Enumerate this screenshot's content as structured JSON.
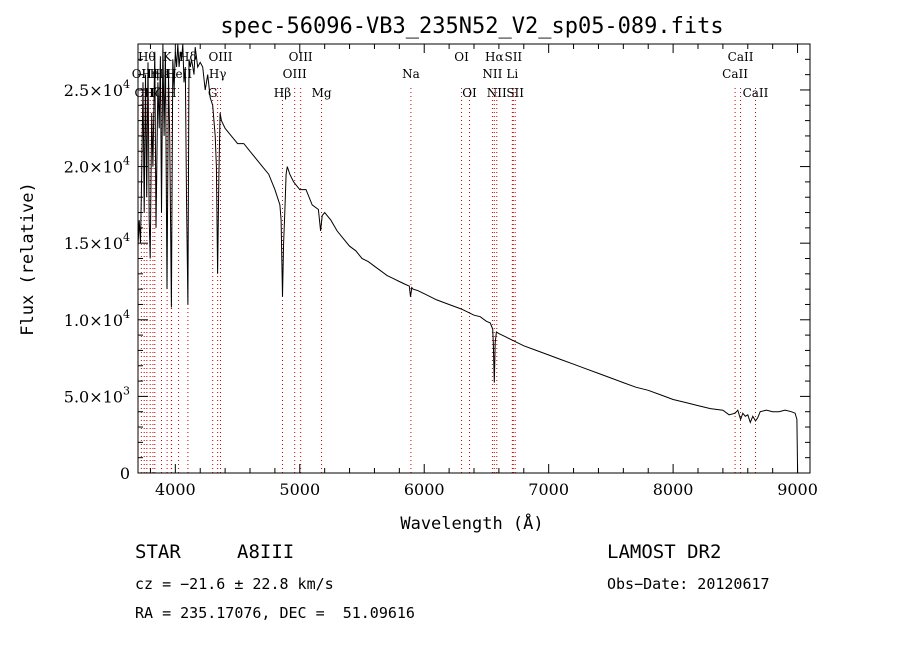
{
  "chart_data": {
    "type": "line",
    "title": "spec-56096-VB3_235N52_V2_sp05-089.fits",
    "xlabel": "Wavelength (Å)",
    "ylabel": "Flux (relative)",
    "xlim": [
      3700,
      9100
    ],
    "ylim": [
      0,
      28000
    ],
    "grid": false,
    "legend": "none",
    "x_ticks": [
      {
        "value": 4000,
        "label": "4000"
      },
      {
        "value": 5000,
        "label": "5000"
      },
      {
        "value": 6000,
        "label": "6000"
      },
      {
        "value": 7000,
        "label": "7000"
      },
      {
        "value": 8000,
        "label": "8000"
      },
      {
        "value": 9000,
        "label": "9000"
      }
    ],
    "y_ticks": [
      {
        "value": 0,
        "mant": "0",
        "exp": ""
      },
      {
        "value": 5000,
        "mant": "5.0×10",
        "exp": "3"
      },
      {
        "value": 10000,
        "mant": "1.0×10",
        "exp": "4"
      },
      {
        "value": 15000,
        "mant": "1.5×10",
        "exp": "4"
      },
      {
        "value": 20000,
        "mant": "2.0×10",
        "exp": "4"
      },
      {
        "value": 25000,
        "mant": "2.5×10",
        "exp": "4"
      }
    ],
    "line_color": "#000000",
    "marker_color": "#cc0000",
    "series": [
      {
        "x": [
          3700,
          3710,
          3720,
          3730,
          3740,
          3750,
          3760,
          3770,
          3780,
          3790,
          3798,
          3810,
          3820,
          3835,
          3845,
          3860,
          3870,
          3880,
          3889,
          3900,
          3910,
          3920,
          3933,
          3945,
          3955,
          3968,
          3980,
          3990,
          4000,
          4010,
          4020,
          4030,
          4040,
          4050,
          4060,
          4070,
          4080,
          4090,
          4101,
          4110,
          4120,
          4130,
          4140,
          4150,
          4160,
          4180,
          4200,
          4220,
          4240,
          4260,
          4280,
          4300,
          4320,
          4330,
          4340,
          4350,
          4360,
          4370,
          4400,
          4450,
          4500,
          4550,
          4600,
          4650,
          4700,
          4750,
          4800,
          4820,
          4840,
          4850,
          4861,
          4870,
          4880,
          4890,
          4900,
          4920,
          4950,
          5000,
          5050,
          5100,
          5150,
          5167,
          5180,
          5200,
          5250,
          5300,
          5350,
          5400,
          5450,
          5500,
          5550,
          5600,
          5650,
          5700,
          5750,
          5800,
          5850,
          5880,
          5890,
          5895,
          5900,
          5910,
          5950,
          6000,
          6100,
          6200,
          6300,
          6400,
          6450,
          6500,
          6530,
          6550,
          6555,
          6563,
          6570,
          6580,
          6600,
          6650,
          6700,
          6800,
          6900,
          7000,
          7100,
          7200,
          7300,
          7400,
          7500,
          7600,
          7700,
          7800,
          7900,
          8000,
          8100,
          8200,
          8300,
          8400,
          8450,
          8498,
          8520,
          8542,
          8560,
          8580,
          8600,
          8620,
          8640,
          8662,
          8680,
          8700,
          8750,
          8800,
          8850,
          8900,
          8950,
          8980,
          8995,
          9000
        ],
        "y": [
          14800,
          16500,
          15000,
          19500,
          25500,
          17000,
          26000,
          18000,
          26800,
          16500,
          14000,
          23500,
          20000,
          27500,
          16000,
          25500,
          22500,
          27200,
          17000,
          28000,
          22000,
          27500,
          12000,
          26000,
          22000,
          10800,
          27000,
          25000,
          27500,
          26500,
          28000,
          26500,
          27500,
          27000,
          28000,
          25500,
          26500,
          18000,
          11000,
          27000,
          26500,
          27000,
          26500,
          26000,
          27800,
          26500,
          26800,
          26500,
          25000,
          26000,
          24500,
          24000,
          22000,
          20000,
          13000,
          19500,
          23500,
          23000,
          22500,
          22000,
          21500,
          21500,
          21000,
          20500,
          20000,
          19500,
          18500,
          18000,
          17500,
          16500,
          11500,
          15000,
          17000,
          19500,
          20000,
          19500,
          19000,
          18500,
          18500,
          17500,
          17200,
          15800,
          16800,
          17000,
          16500,
          15800,
          15300,
          14800,
          14500,
          14000,
          13800,
          13500,
          13200,
          12900,
          12700,
          12500,
          12300,
          12200,
          11500,
          11800,
          12100,
          12000,
          11900,
          11700,
          11300,
          11000,
          10700,
          10300,
          10200,
          9900,
          9800,
          9400,
          8500,
          5900,
          8500,
          9200,
          9100,
          8900,
          8700,
          8300,
          8000,
          7700,
          7400,
          7100,
          6800,
          6500,
          6200,
          5900,
          5600,
          5400,
          5100,
          4800,
          4600,
          4400,
          4200,
          4100,
          3800,
          3900,
          4100,
          3500,
          3900,
          3700,
          3800,
          3300,
          3700,
          3400,
          3600,
          4000,
          4100,
          4000,
          4000,
          4100,
          4000,
          3900,
          3500,
          0
        ]
      }
    ],
    "lines": [
      {
        "wl": 3727,
        "label": "OII",
        "row": 1,
        "tx": 0
      },
      {
        "wl": 3750,
        "label": "OII",
        "row": 2,
        "tx": 0
      },
      {
        "wl": 3771,
        "label": "Hθ",
        "row": 0,
        "tx": 0
      },
      {
        "wl": 3798,
        "label": "Hη",
        "row": 1,
        "tx": 0
      },
      {
        "wl": 3820,
        "label": "Hζ",
        "row": 2,
        "tx": 0
      },
      {
        "wl": 3835,
        "label": "H",
        "row": 1,
        "tx": 0
      },
      {
        "wl": 3889,
        "label": "Hε",
        "row": 1,
        "tx": 0
      },
      {
        "wl": 3934,
        "label": "K",
        "row": 0,
        "tx": 0
      },
      {
        "wl": 3968,
        "label": "H",
        "row": 2,
        "tx": 0
      },
      {
        "wl": 3970,
        "label": "H",
        "row": 1,
        "tx": 0
      },
      {
        "wl": 4026,
        "label": "HeII",
        "row": 1,
        "tx": 0
      },
      {
        "wl": 4101,
        "label": "Hδ",
        "row": 0,
        "tx": 0
      },
      {
        "wl": 4300,
        "label": "G",
        "row": 2,
        "tx": 0
      },
      {
        "wl": 4340,
        "label": "Hγ",
        "row": 1,
        "tx": 0
      },
      {
        "wl": 4363,
        "label": "OIII",
        "row": 0,
        "tx": 0
      },
      {
        "wl": 4861,
        "label": "Hβ",
        "row": 2,
        "tx": 0
      },
      {
        "wl": 4959,
        "label": "OIII",
        "row": 1,
        "tx": 0
      },
      {
        "wl": 5007,
        "label": "OIII",
        "row": 0,
        "tx": 0
      },
      {
        "wl": 5175,
        "label": "Mg",
        "row": 2,
        "tx": 0
      },
      {
        "wl": 5893,
        "label": "Na",
        "row": 1,
        "tx": 0
      },
      {
        "wl": 6300,
        "label": "OI",
        "row": 0,
        "tx": 0
      },
      {
        "wl": 6364,
        "label": "OI",
        "row": 2,
        "tx": 0
      },
      {
        "wl": 6548,
        "label": "NII",
        "row": 1,
        "tx": 0
      },
      {
        "wl": 6563,
        "label": "Hα",
        "row": 0,
        "tx": 0
      },
      {
        "wl": 6583,
        "label": "NII",
        "row": 2,
        "tx": 0
      },
      {
        "wl": 6708,
        "label": "Li",
        "row": 1,
        "tx": 0
      },
      {
        "wl": 6716,
        "label": "SII",
        "row": 0,
        "tx": 0
      },
      {
        "wl": 6731,
        "label": "SII",
        "row": 2,
        "tx": 0
      },
      {
        "wl": 8498,
        "label": "CaII",
        "row": 1,
        "tx": 0
      },
      {
        "wl": 8542,
        "label": "CaII",
        "row": 0,
        "tx": 0
      },
      {
        "wl": 8662,
        "label": "CaII",
        "row": 2,
        "tx": 0
      }
    ]
  },
  "info": {
    "star_label": "STAR",
    "spectral_type": "A8III",
    "survey": "LAMOST DR2",
    "cz": "cz = −21.6 ± 22.8 km/s",
    "obs_date": "Obs−Date: 20120617",
    "radec": "RA = 235.17076, DEC =  51.09616"
  }
}
